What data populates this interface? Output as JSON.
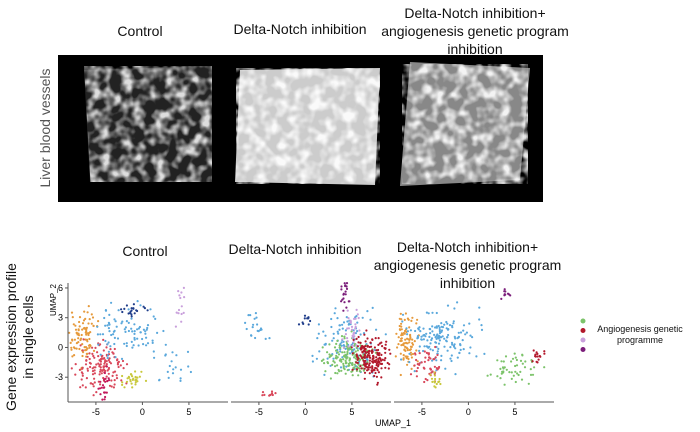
{
  "images": {
    "titles": [
      "Control",
      "Delta-Notch inhibition",
      "Delta-Notch inhibition+ angiogenesis genetic program inhibition"
    ],
    "row_label": "Liver blood vessels"
  },
  "umap": {
    "titles": [
      "Control",
      "Delta-Notch inhibition",
      "Delta-Notch inhibition+ angiogenesis genetic program inhibition"
    ],
    "row_label": "Gene expression profile in single cells",
    "x_label": "UMAP_1",
    "y_label": "UMAP_2",
    "xlim": [
      -8,
      9.2
    ],
    "ylim": [
      -5.5,
      6.5
    ],
    "xticks": [
      -5,
      0,
      5
    ],
    "yticks": [
      6,
      3,
      0,
      -3
    ],
    "legend": {
      "colors": [
        "#7cc36a",
        "#b2182b",
        "#c9a0dc",
        "#7b1e7a"
      ],
      "label": "Angiogenesis genetic programme"
    }
  }
}
